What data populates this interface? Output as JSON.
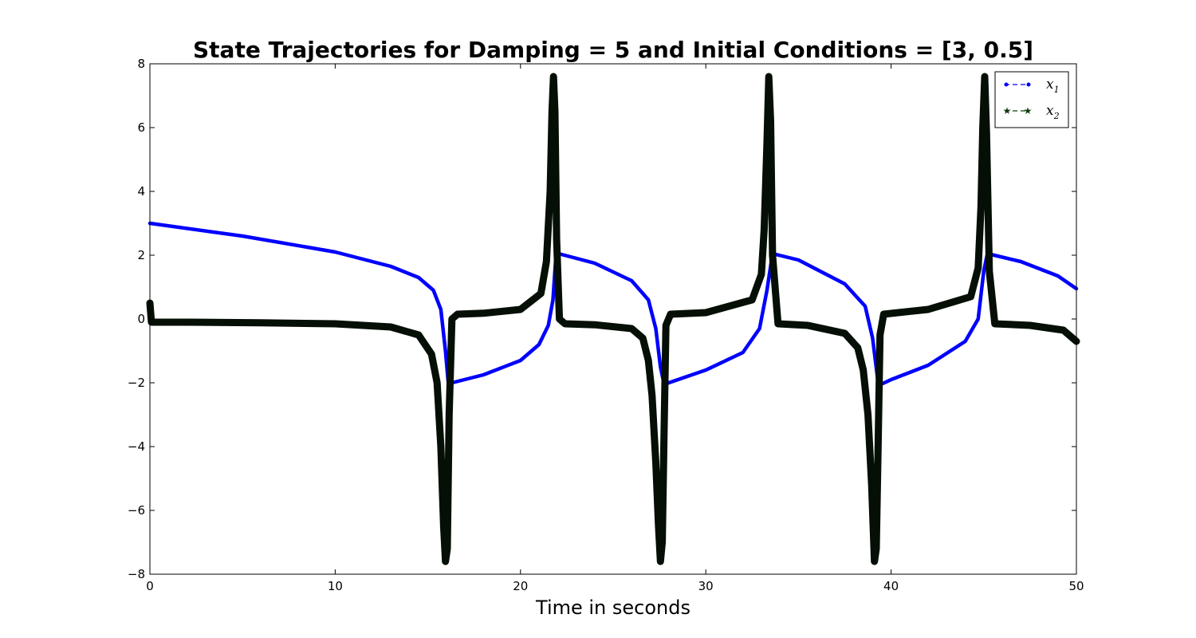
{
  "chart_data": {
    "type": "line",
    "title": "State Trajectories for Damping = 5 and Initial Conditions = [3, 0.5]",
    "xlabel": "Time in seconds",
    "ylabel": "",
    "xlim": [
      0,
      50
    ],
    "ylim": [
      -8,
      8
    ],
    "xticks": [
      0,
      10,
      20,
      30,
      40,
      50
    ],
    "yticks": [
      -8,
      -6,
      -4,
      -2,
      0,
      2,
      4,
      6,
      8
    ],
    "xtick_labels": [
      "0",
      "10",
      "20",
      "30",
      "40",
      "50"
    ],
    "ytick_labels": [
      "−8",
      "−6",
      "−4",
      "−2",
      "0",
      "2",
      "4",
      "6",
      "8"
    ],
    "grid": false,
    "legend_position": "top-right",
    "series": [
      {
        "name": "x1",
        "legend_symbol": "x",
        "legend_subscript": "1",
        "color": "#0000ff",
        "marker": "dot",
        "linestyle": "dashed",
        "x": [
          0,
          5,
          10,
          13,
          14.5,
          15.3,
          15.7,
          15.95,
          16.1,
          16.3,
          18,
          20,
          21,
          21.5,
          21.75,
          21.9,
          22.05,
          24,
          26,
          26.9,
          27.3,
          27.55,
          27.75,
          28,
          30,
          32,
          32.9,
          33.3,
          33.6,
          35,
          37.5,
          38.6,
          39.0,
          39.3,
          39.45,
          40,
          42,
          44,
          44.7,
          45.0,
          45.2,
          47,
          49,
          50
        ],
        "y": [
          3.0,
          2.6,
          2.1,
          1.65,
          1.3,
          0.9,
          0.3,
          -1.0,
          -2.0,
          -2.0,
          -1.75,
          -1.3,
          -0.8,
          -0.2,
          0.6,
          1.9,
          2.05,
          1.75,
          1.2,
          0.6,
          -0.3,
          -1.5,
          -2.05,
          -2.0,
          -1.6,
          -1.05,
          -0.3,
          0.9,
          2.05,
          1.85,
          1.1,
          0.4,
          -0.6,
          -2.0,
          -2.05,
          -1.9,
          -1.45,
          -0.7,
          0.0,
          1.5,
          2.05,
          1.8,
          1.35,
          0.95
        ]
      },
      {
        "name": "x2",
        "legend_symbol": "x",
        "legend_subscript": "2",
        "color": "#0b3d0b",
        "marker": "star",
        "linestyle": "dashed",
        "x": [
          0,
          0.08,
          2,
          6,
          10,
          13,
          14.5,
          15.2,
          15.5,
          15.7,
          15.85,
          15.95,
          16.05,
          16.15,
          16.3,
          16.6,
          18,
          20,
          21.1,
          21.4,
          21.6,
          21.7,
          21.78,
          21.86,
          21.95,
          22.1,
          22.4,
          24,
          26,
          26.6,
          26.9,
          27.1,
          27.3,
          27.45,
          27.55,
          27.65,
          27.75,
          27.85,
          28.1,
          30,
          32.5,
          33.0,
          33.15,
          33.3,
          33.4,
          33.5,
          33.6,
          33.9,
          35.5,
          37.5,
          38.2,
          38.5,
          38.75,
          38.95,
          39.1,
          39.2,
          39.3,
          39.4,
          39.6,
          42,
          44.3,
          44.7,
          44.85,
          44.95,
          45.05,
          45.15,
          45.3,
          45.6,
          47.5,
          49.3,
          50
        ],
        "y": [
          0.5,
          -0.1,
          -0.1,
          -0.12,
          -0.15,
          -0.25,
          -0.5,
          -1.1,
          -2.0,
          -4.0,
          -6.5,
          -7.6,
          -7.2,
          -3.0,
          0.0,
          0.15,
          0.18,
          0.3,
          0.8,
          1.8,
          4.0,
          6.5,
          7.6,
          6.5,
          2.5,
          0.0,
          -0.15,
          -0.18,
          -0.3,
          -0.6,
          -1.3,
          -2.4,
          -4.5,
          -6.5,
          -7.6,
          -7.0,
          -3.5,
          -0.2,
          0.15,
          0.2,
          0.6,
          1.4,
          2.8,
          5.5,
          7.6,
          6.2,
          2.0,
          -0.15,
          -0.2,
          -0.45,
          -0.9,
          -1.6,
          -3.0,
          -5.2,
          -7.6,
          -7.2,
          -4.0,
          -0.5,
          0.15,
          0.3,
          0.7,
          1.6,
          3.5,
          6.0,
          7.6,
          5.8,
          1.5,
          -0.15,
          -0.2,
          -0.35,
          -0.7
        ]
      }
    ]
  }
}
